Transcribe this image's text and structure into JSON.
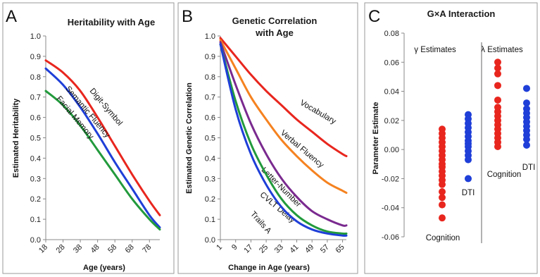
{
  "colors": {
    "red": "#e8261e",
    "blue": "#1f3fd8",
    "green": "#229a3c",
    "orange": "#f58220",
    "purple": "#7a2a8f",
    "axis": "#888888",
    "panel_border": "#9a9a9a"
  },
  "chart_data": [
    {
      "panel": "A",
      "type": "line",
      "title": "Heritability with Age",
      "xlabel": "Age (years)",
      "ylabel": "Estimated Heritability",
      "xlim": [
        18,
        84
      ],
      "ylim": [
        0,
        1.0
      ],
      "xticks": [
        "18",
        "28",
        "38",
        "48",
        "58",
        "68",
        "78"
      ],
      "yticks": [
        "0.0",
        "0.1",
        "0.2",
        "0.3",
        "0.4",
        "0.5",
        "0.6",
        "0.7",
        "0.8",
        "0.9",
        "1.0"
      ],
      "grid": false,
      "series": [
        {
          "name": "Digit-Symbol",
          "color": "red",
          "x": [
            18,
            28,
            38,
            48,
            58,
            68,
            78,
            84
          ],
          "y": [
            0.88,
            0.82,
            0.73,
            0.6,
            0.46,
            0.32,
            0.19,
            0.12
          ]
        },
        {
          "name": "Semantic Fluency",
          "color": "blue",
          "x": [
            18,
            28,
            38,
            48,
            58,
            68,
            78,
            84
          ],
          "y": [
            0.84,
            0.76,
            0.65,
            0.52,
            0.38,
            0.25,
            0.12,
            0.06
          ]
        },
        {
          "name": "Facial Memory",
          "color": "green",
          "x": [
            18,
            28,
            38,
            48,
            58,
            68,
            78,
            84
          ],
          "y": [
            0.73,
            0.66,
            0.56,
            0.44,
            0.32,
            0.2,
            0.1,
            0.05
          ]
        }
      ]
    },
    {
      "panel": "B",
      "type": "line",
      "title": "Genetic Correlation with Age",
      "title_lines": [
        "Genetic Correlation",
        "with Age"
      ],
      "xlabel": "Change in Age (years)",
      "ylabel": "Estimated Genetic Correlation",
      "xlim": [
        1,
        67
      ],
      "ylim": [
        0,
        1.0
      ],
      "xticks": [
        "1",
        "9",
        "17",
        "25",
        "33",
        "41",
        "49",
        "57",
        "65"
      ],
      "yticks": [
        "0.0",
        "0.1",
        "0.2",
        "0.3",
        "0.4",
        "0.5",
        "0.6",
        "0.7",
        "0.8",
        "0.9",
        "1.0"
      ],
      "grid": false,
      "series": [
        {
          "name": "Vocabulary",
          "color": "red",
          "x": [
            1,
            9,
            17,
            25,
            33,
            41,
            49,
            57,
            65,
            67
          ],
          "y": [
            0.99,
            0.9,
            0.81,
            0.73,
            0.66,
            0.59,
            0.53,
            0.47,
            0.42,
            0.41
          ]
        },
        {
          "name": "Verbal Fluency",
          "color": "orange",
          "x": [
            1,
            9,
            17,
            25,
            33,
            41,
            49,
            57,
            65,
            67
          ],
          "y": [
            0.98,
            0.84,
            0.7,
            0.59,
            0.49,
            0.41,
            0.34,
            0.28,
            0.24,
            0.23
          ]
        },
        {
          "name": "Letter-Number",
          "color": "purple",
          "x": [
            1,
            9,
            17,
            25,
            33,
            41,
            49,
            57,
            65,
            67
          ],
          "y": [
            0.97,
            0.76,
            0.57,
            0.42,
            0.3,
            0.21,
            0.14,
            0.1,
            0.07,
            0.07
          ]
        },
        {
          "name": "CVLT Delay",
          "color": "green",
          "x": [
            1,
            9,
            17,
            25,
            33,
            41,
            49,
            57,
            65,
            67
          ],
          "y": [
            0.96,
            0.68,
            0.47,
            0.32,
            0.2,
            0.12,
            0.07,
            0.04,
            0.03,
            0.03
          ]
        },
        {
          "name": "Trails A",
          "color": "blue",
          "x": [
            1,
            9,
            17,
            25,
            33,
            41,
            49,
            57,
            65,
            67
          ],
          "y": [
            0.96,
            0.64,
            0.42,
            0.27,
            0.16,
            0.09,
            0.05,
            0.03,
            0.02,
            0.02
          ]
        }
      ]
    },
    {
      "panel": "C",
      "type": "scatter",
      "title": "G×A Interaction",
      "xlabel": "",
      "ylabel": "Parameter Estimate",
      "ylim": [
        -0.06,
        0.08
      ],
      "yticks": [
        "0.08",
        "0.06",
        "0.04",
        "0.02",
        "0.00",
        "-0.02",
        "-0.04",
        "-0.06"
      ],
      "grid": false,
      "groups": [
        {
          "name": "γ Estimates"
        },
        {
          "name": "λ Estimates"
        }
      ],
      "series": [
        {
          "group": "γ Estimates",
          "name": "Cognition",
          "color": "red",
          "y": [
            0.014,
            0.011,
            0.008,
            0.005,
            0.002,
            -0.001,
            -0.004,
            -0.007,
            -0.01,
            -0.012,
            -0.015,
            -0.018,
            -0.021,
            -0.024,
            -0.029,
            -0.033,
            -0.038,
            -0.047
          ]
        },
        {
          "group": "γ Estimates",
          "name": "DTI",
          "color": "blue",
          "y": [
            0.024,
            0.021,
            0.018,
            0.015,
            0.012,
            0.009,
            0.006,
            0.004,
            0.002,
            -0.001,
            -0.004,
            -0.007,
            -0.02
          ]
        },
        {
          "group": "λ Estimates",
          "name": "Cognition",
          "color": "red",
          "y": [
            0.06,
            0.056,
            0.052,
            0.044,
            0.034,
            0.029,
            0.026,
            0.023,
            0.02,
            0.017,
            0.014,
            0.011,
            0.008,
            0.005,
            0.002
          ]
        },
        {
          "group": "λ Estimates",
          "name": "DTI",
          "color": "blue",
          "y": [
            0.042,
            0.032,
            0.028,
            0.025,
            0.022,
            0.019,
            0.016,
            0.013,
            0.01,
            0.007,
            0.003
          ]
        }
      ]
    }
  ]
}
